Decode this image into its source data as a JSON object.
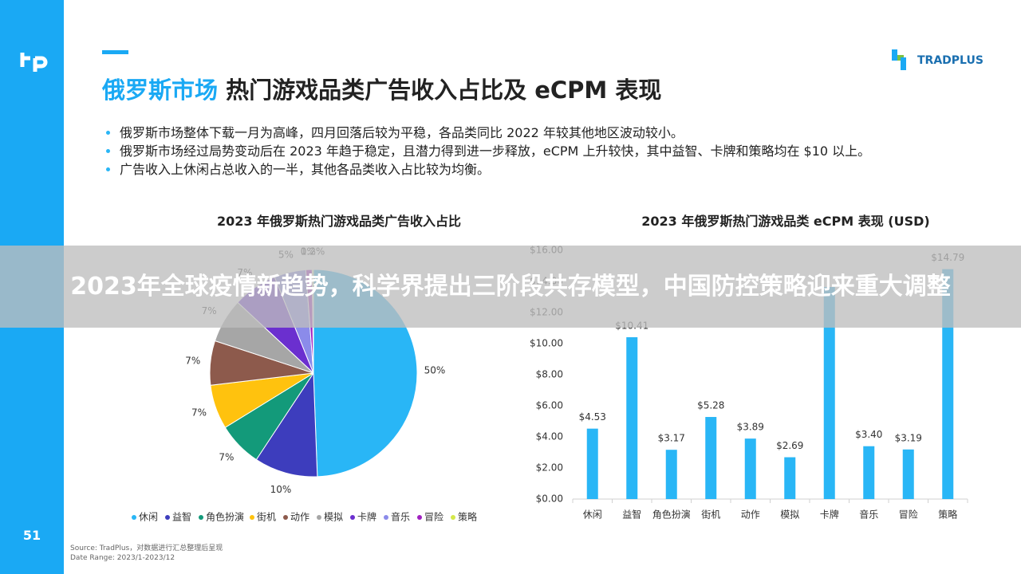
{
  "page_number": "51",
  "brand": "TRADPLUS",
  "title_highlight": "俄罗斯市场",
  "title_rest": "热门游戏品类广告收入占比及 eCPM 表现",
  "bullets": [
    "俄罗斯市场整体下载一月为高峰，四月回落后较为平稳，各品类同比 2022 年较其他地区波动较小。",
    "俄罗斯市场经过局势变动后在 2023 年趋于稳定，且潜力得到进一步释放，eCPM 上升较快，其中益智、卡牌和策略均在 $10 以上。",
    "广告收入上休闲占总收入的一半，其他各品类收入占比较为均衡。"
  ],
  "banner": "2023年全球疫情新趋势，科学界提出三阶段共存模型，中国防控策略迎来重大调整",
  "source": [
    "Source: TradPlus，对数据进行汇总整理后呈现",
    "Date Range: 2023/1-2023/12"
  ],
  "chart_data": [
    {
      "type": "pie",
      "title": "2023 年俄罗斯热门游戏品类广告收入占比",
      "categories": [
        "休闲",
        "益智",
        "角色扮演",
        "街机",
        "动作",
        "模拟",
        "卡牌",
        "音乐",
        "冒险",
        "策略"
      ],
      "values": [
        50,
        10,
        7,
        7,
        7,
        7,
        7,
        5,
        1,
        0.2
      ],
      "value_labels": [
        "50%",
        "10%",
        "7%",
        "7%",
        "7%",
        "7%",
        "7%",
        "5%",
        "1%",
        "0.2%"
      ],
      "colors": [
        "#29b6f6",
        "#3d3dbd",
        "#139a7a",
        "#ffc20e",
        "#8d5a4c",
        "#a6a6a6",
        "#6b2fcf",
        "#8b8bea",
        "#a020c0",
        "#d4e84a"
      ],
      "legend": "bottom"
    },
    {
      "type": "bar",
      "title": "2023 年俄罗斯热门游戏品类 eCPM 表现 (USD)",
      "categories": [
        "休闲",
        "益智",
        "角色扮演",
        "街机",
        "动作",
        "模拟",
        "卡牌",
        "音乐",
        "冒险",
        "策略"
      ],
      "values": [
        4.53,
        10.41,
        3.17,
        5.28,
        3.89,
        2.69,
        13.64,
        3.4,
        3.19,
        14.79
      ],
      "value_labels": [
        "$4.53",
        "$10.41",
        "$3.17",
        "$5.28",
        "$3.89",
        "$2.69",
        null,
        "$3.40",
        "$3.19",
        "$14.79"
      ],
      "color": "#29b6f6",
      "ylim": [
        0,
        16
      ],
      "yticks": [
        {
          "value": 0,
          "label": "$0.00"
        },
        {
          "value": 2,
          "label": "$2.00"
        },
        {
          "value": 4,
          "label": "$4.00"
        },
        {
          "value": 6,
          "label": "$6.00"
        },
        {
          "value": 8,
          "label": "$8.00"
        },
        {
          "value": 10,
          "label": "$10.00"
        },
        {
          "value": 12,
          "label": "$12.00"
        },
        {
          "value": 14,
          "label": "$14.00"
        },
        {
          "value": 16,
          "label": "$16.00"
        }
      ],
      "grid": false
    }
  ]
}
